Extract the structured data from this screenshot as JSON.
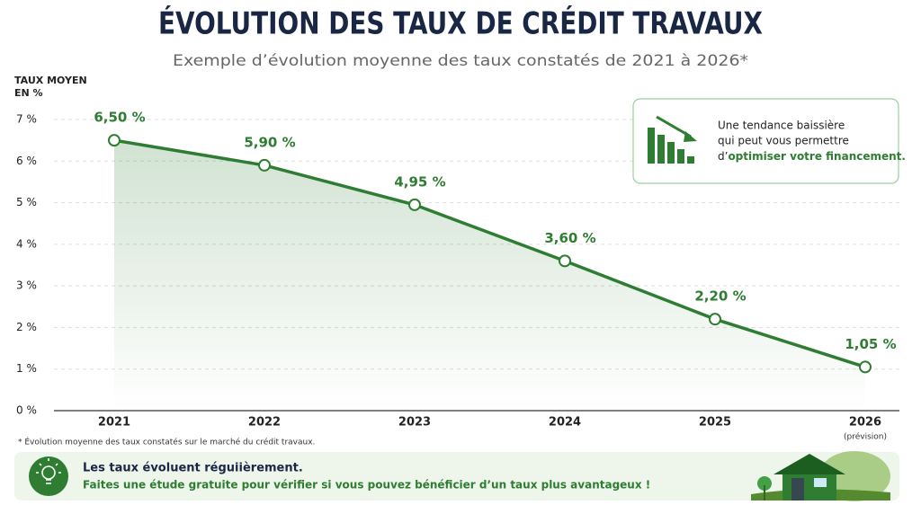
{
  "chart_data": {
    "type": "line",
    "title": "ÉVOLUTION DES TAUX DE CRÉDIT TRAVAUX",
    "subtitle": "Exemple d’évolution moyenne des taux constatés de 2021 à 2026*",
    "y_label_line1": "TAUX MOYEN",
    "y_label_line2": "EN %",
    "categories": [
      "2021",
      "2022",
      "2023",
      "2024",
      "2025",
      "2026"
    ],
    "category_note": "(prévision)",
    "values": [
      6.5,
      5.9,
      4.95,
      3.6,
      2.2,
      1.05
    ],
    "value_labels": [
      "6,50 %",
      "5,90 %",
      "4,95 %",
      "3,60 %",
      "2,20 %",
      "1,05 %"
    ],
    "color": "#2e7d32",
    "ylim": [
      0,
      7
    ],
    "yticks": [
      {
        "value": 0,
        "label": "0 %"
      },
      {
        "value": 1,
        "label": "1 %"
      },
      {
        "value": 2,
        "label": "2 %"
      },
      {
        "value": 3,
        "label": "3 %"
      },
      {
        "value": 4,
        "label": "4 %"
      },
      {
        "value": 5,
        "label": "5 %"
      },
      {
        "value": 6,
        "label": "6 %"
      },
      {
        "value": 7,
        "label": "7 %"
      }
    ],
    "grid": true
  },
  "callout": {
    "line1": "Une tendance baissière",
    "line2": "qui peut vous permettre",
    "line3": "d’",
    "line3_bold": "optimiser votre financement."
  },
  "footnote": "* Évolution moyenne des taux constatés sur le marché du crédit travaux.",
  "banner": {
    "title": "Les taux évoluent réguiièrement.",
    "text": "Faites une étude gratuite pour vérifier si vous pouvez bénéficier d’un taux plus avantageux !"
  }
}
